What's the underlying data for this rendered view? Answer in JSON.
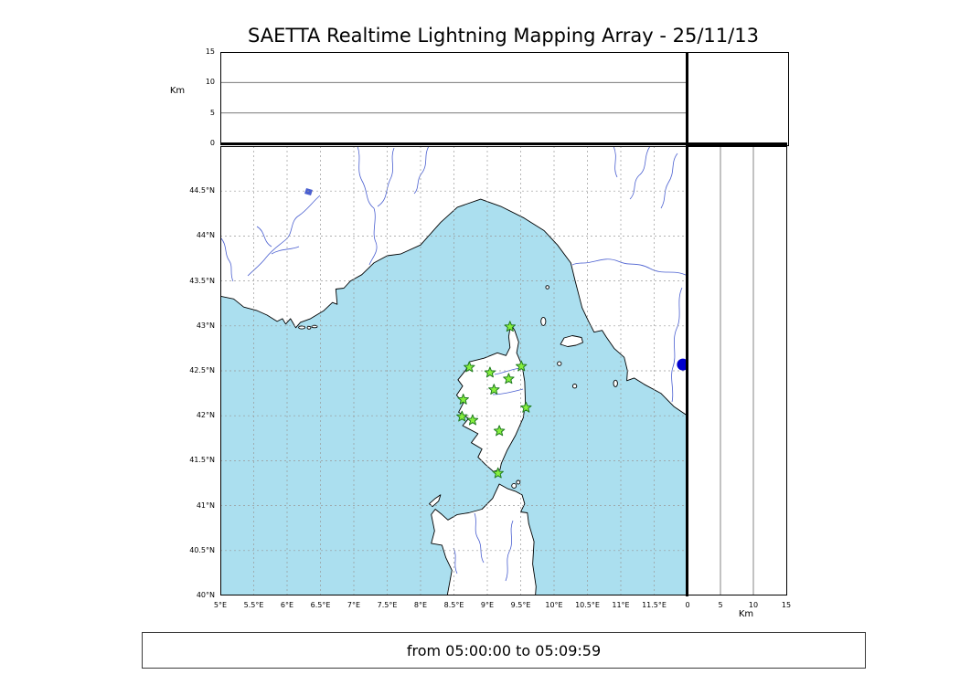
{
  "title": "SAETTA Realtime Lightning Mapping Array - 25/11/13",
  "footer": {
    "text": "from 05:00:00 to 05:09:59"
  },
  "top_panel": {
    "axis_label": "Km",
    "ticks": [
      {
        "label": "0",
        "value": 0
      },
      {
        "label": "5",
        "value": 5
      },
      {
        "label": "10",
        "value": 10
      },
      {
        "label": "15",
        "value": 15
      }
    ],
    "grid": [
      5,
      10
    ]
  },
  "right_panel": {
    "axis_label": "Km",
    "ticks": [
      {
        "label": "0",
        "value": 0
      },
      {
        "label": "5",
        "value": 5
      },
      {
        "label": "10",
        "value": 10
      },
      {
        "label": "15",
        "value": 15
      }
    ],
    "grid": [
      5,
      10
    ]
  },
  "map": {
    "lat_ticks": [
      {
        "label": "44.5°N",
        "value": 44.5
      },
      {
        "label": "44°N",
        "value": 44
      },
      {
        "label": "43.5°N",
        "value": 43.5
      },
      {
        "label": "43°N",
        "value": 43
      },
      {
        "label": "42.5°N",
        "value": 42.5
      },
      {
        "label": "42°N",
        "value": 42
      },
      {
        "label": "41.5°N",
        "value": 41.5
      },
      {
        "label": "41°N",
        "value": 41
      },
      {
        "label": "40.5°N",
        "value": 40.5
      },
      {
        "label": "40°N",
        "value": 40
      }
    ],
    "lon_ticks": [
      {
        "label": "5°E",
        "value": 5
      },
      {
        "label": "5.5°E",
        "value": 5.5
      },
      {
        "label": "6°E",
        "value": 6
      },
      {
        "label": "6.5°E",
        "value": 6.5
      },
      {
        "label": "7°E",
        "value": 7
      },
      {
        "label": "7.5°E",
        "value": 7.5
      },
      {
        "label": "8°E",
        "value": 8
      },
      {
        "label": "8.5°E",
        "value": 8.5
      },
      {
        "label": "9°E",
        "value": 9
      },
      {
        "label": "9.5°E",
        "value": 9.5
      },
      {
        "label": "10°E",
        "value": 10
      },
      {
        "label": "10.5°E",
        "value": 10.5
      },
      {
        "label": "11°E",
        "value": 11
      },
      {
        "label": "11.5°E",
        "value": 11.5
      }
    ],
    "lon_range": [
      5,
      12
    ],
    "lat_range": [
      40,
      45
    ]
  },
  "stations": [
    [
      9.34,
      42.99
    ],
    [
      8.73,
      42.54
    ],
    [
      9.04,
      42.48
    ],
    [
      9.51,
      42.55
    ],
    [
      9.32,
      42.41
    ],
    [
      9.1,
      42.29
    ],
    [
      8.64,
      42.18
    ],
    [
      9.58,
      42.09
    ],
    [
      8.62,
      41.99
    ],
    [
      8.78,
      41.95
    ],
    [
      9.18,
      41.83
    ],
    [
      9.16,
      41.36
    ]
  ],
  "event_dot": {
    "lon": 11.93,
    "lat": 42.57,
    "alt_km": 0,
    "color": "#0000cd"
  },
  "colors": {
    "sea": "#abdfef",
    "land": "#ffffff",
    "coast": "#000000",
    "river": "#4a5fd0",
    "grid": "#999999",
    "star_fill": "#86ef3e",
    "star_stroke": "#1f7a1f",
    "frame": "#000000"
  }
}
